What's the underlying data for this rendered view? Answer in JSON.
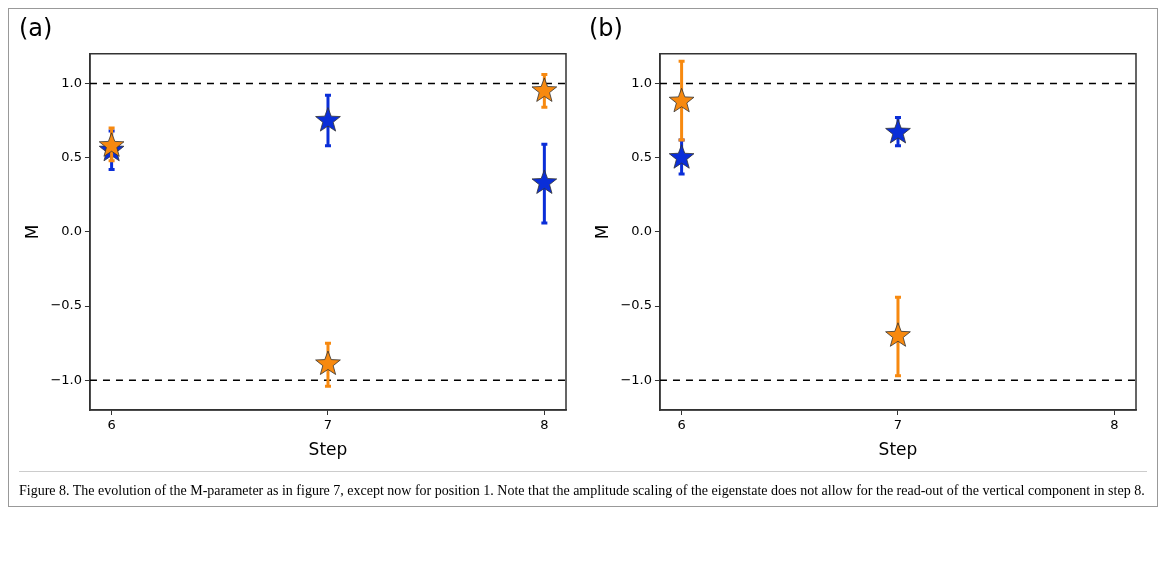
{
  "chart_data": [
    {
      "type": "scatter",
      "title": "(a)",
      "xlabel": "Step",
      "ylabel": "M",
      "xlim": [
        5.9,
        8.1
      ],
      "xticks": [
        6,
        7,
        8
      ],
      "ylim": [
        -1.2,
        1.2
      ],
      "yticks": [
        {
          "value": -1,
          "label": "−1.0"
        },
        {
          "value": -0.5,
          "label": "−0.5"
        },
        {
          "value": 0,
          "label": "0.0"
        },
        {
          "value": 0.5,
          "label": "0.5"
        },
        {
          "value": 1,
          "label": "1.0"
        }
      ],
      "grid": false,
      "legend": false,
      "marker": "star",
      "series": [
        {
          "color": "#0a2ed8",
          "x": [
            6,
            7,
            8
          ],
          "values": [
            0.55,
            0.75,
            0.33
          ],
          "errors": [
            [
              0.42,
              0.68
            ],
            [
              0.58,
              0.92
            ],
            [
              0.06,
              0.59
            ]
          ]
        },
        {
          "color": "#f7890f",
          "x": [
            6,
            7,
            8
          ],
          "values": [
            0.58,
            -0.89,
            0.95
          ],
          "errors": [
            [
              0.48,
              0.7
            ],
            [
              -1.04,
              -0.75
            ],
            [
              0.84,
              1.06
            ]
          ]
        }
      ],
      "ref_lines": [
        {
          "axis": "y",
          "value": 1.0,
          "color": "#000000",
          "line_style": "dashed"
        },
        {
          "axis": "y",
          "value": -1.0,
          "color": "#000000",
          "line_style": "dashed"
        }
      ],
      "annotations": [
        "Figure 8. The evolution of the M-parameter as in figure 7, except now for position 1. Note that the amplitude scaling of the eigenstate does not allow for the read-out of the vertical component in step 8."
      ]
    },
    {
      "type": "scatter",
      "title": "(b)",
      "xlabel": "Step",
      "ylabel": "M",
      "xlim": [
        5.9,
        8.1
      ],
      "xticks": [
        6,
        7,
        8
      ],
      "ylim": [
        -1.2,
        1.2
      ],
      "yticks": [
        {
          "value": -1,
          "label": "−1.0"
        },
        {
          "value": -0.5,
          "label": "−0.5"
        },
        {
          "value": 0,
          "label": "0.0"
        },
        {
          "value": 0.5,
          "label": "0.5"
        },
        {
          "value": 1,
          "label": "1.0"
        }
      ],
      "grid": false,
      "legend": false,
      "marker": "star",
      "series": [
        {
          "color": "#0a2ed8",
          "x": [
            6,
            7
          ],
          "values": [
            0.5,
            0.67
          ],
          "errors": [
            [
              0.39,
              0.62
            ],
            [
              0.58,
              0.77
            ]
          ]
        },
        {
          "color": "#f7890f",
          "x": [
            6,
            7
          ],
          "values": [
            0.88,
            -0.7
          ],
          "errors": [
            [
              0.62,
              1.15
            ],
            [
              -0.97,
              -0.44
            ]
          ]
        }
      ],
      "ref_lines": [
        {
          "axis": "y",
          "value": 1.0,
          "color": "#000000",
          "line_style": "dashed"
        },
        {
          "axis": "y",
          "value": -1.0,
          "color": "#000000",
          "line_style": "dashed"
        }
      ]
    }
  ]
}
